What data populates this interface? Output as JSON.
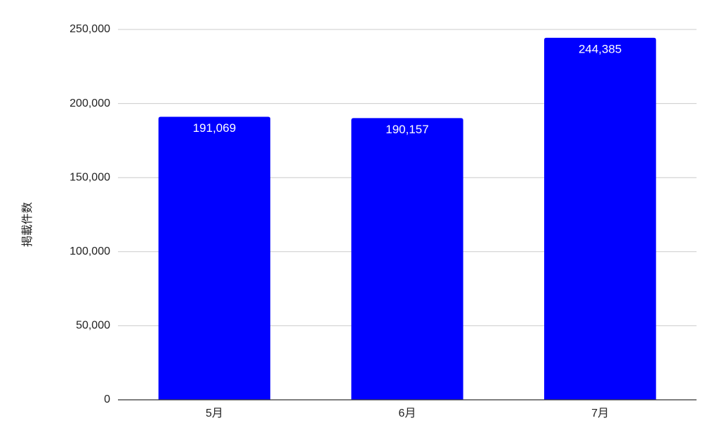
{
  "chart_data": {
    "type": "bar",
    "y_label": "掲載件数",
    "categories": [
      "5月",
      "6月",
      "7月"
    ],
    "values": [
      191069,
      190157,
      244385
    ],
    "value_labels": [
      "191,069",
      "190,157",
      "244,385"
    ],
    "color": "#0000ff",
    "ylim": [
      0,
      250000
    ],
    "yticks": [
      0,
      {
        "value": 50000,
        "label": "50,000"
      },
      {
        "value": 100000,
        "label": "100,000"
      },
      {
        "value": 150000,
        "label": "150,000"
      },
      {
        "value": 200000,
        "label": "200,000"
      },
      {
        "value": 250000,
        "label": "250,000"
      }
    ],
    "grid": true
  }
}
